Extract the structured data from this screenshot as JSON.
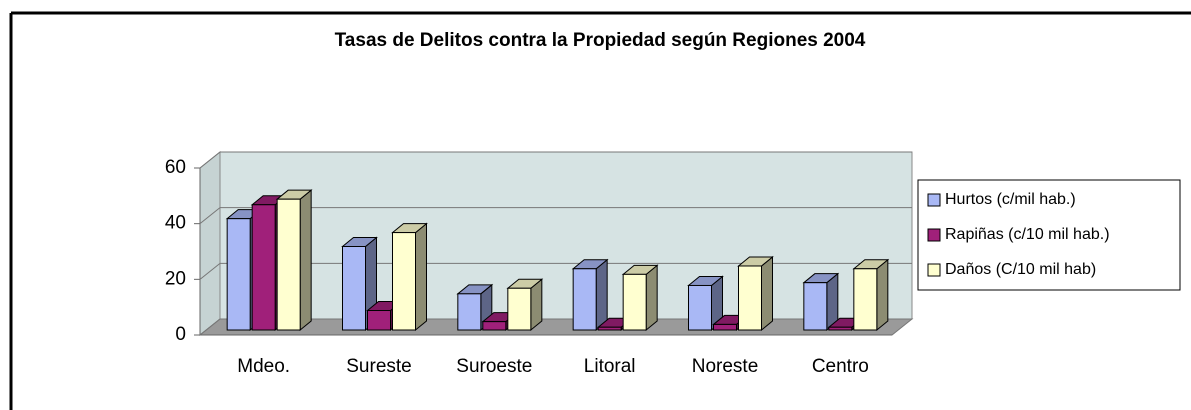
{
  "chart_data": {
    "type": "bar3d",
    "title": "Tasas de Delitos contra la Propiedad según Regiones 2004",
    "categories": [
      "Mdeo.",
      "Sureste",
      "Suroeste",
      "Litoral",
      "Noreste",
      "Centro"
    ],
    "series": [
      {
        "name": "Hurtos (c/mil hab.)",
        "color": "#a9b8f5",
        "values": [
          40,
          30,
          13,
          22,
          16,
          17
        ]
      },
      {
        "name": "Rapiñas (c/10 mil hab.)",
        "color": "#a0207a",
        "values": [
          45,
          7,
          3,
          1,
          2,
          1
        ]
      },
      {
        "name": "Daños (C/10 mil hab)",
        "color": "#ffffd0",
        "values": [
          47,
          35,
          15,
          20,
          23,
          22
        ]
      }
    ],
    "ylim": [
      0,
      60
    ],
    "yticks": [
      0,
      20,
      40,
      60
    ],
    "grid": true,
    "legend": "right"
  }
}
